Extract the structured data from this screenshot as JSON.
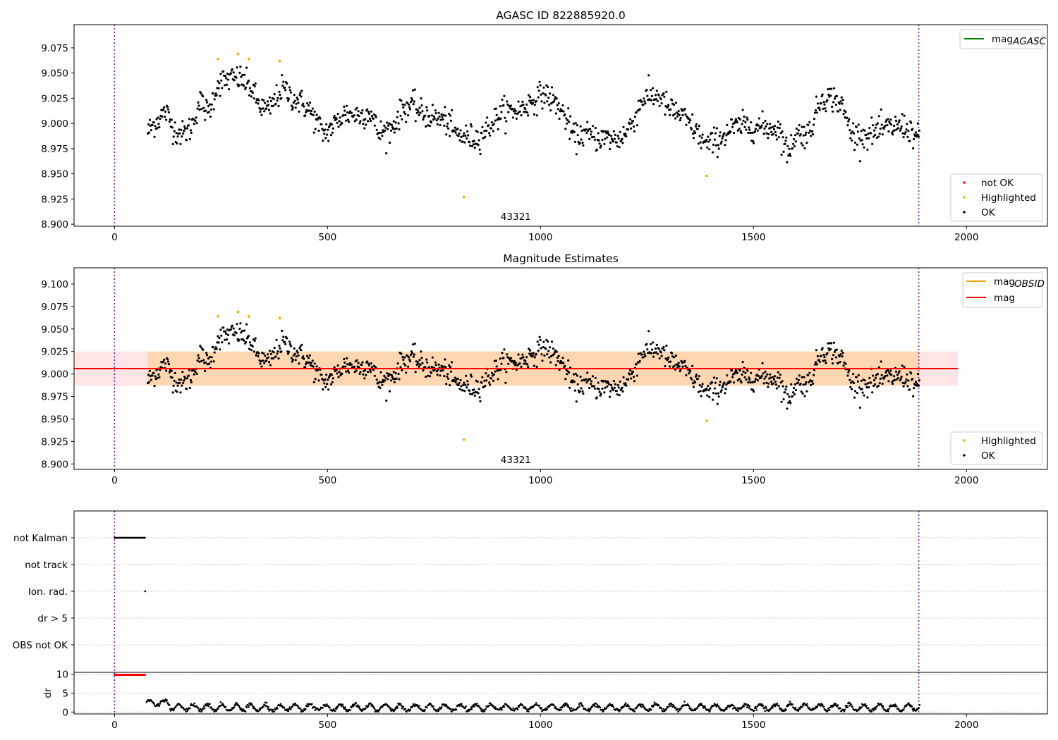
{
  "chart_data": [
    {
      "type": "scatter",
      "title": "AGASC ID 822885920.0",
      "xlim": [
        -95,
        2190
      ],
      "ylim": [
        8.898,
        9.098
      ],
      "xticks": [
        0,
        500,
        1000,
        1500,
        2000
      ],
      "yticks": [
        8.9,
        8.925,
        8.95,
        8.975,
        9.0,
        9.025,
        9.05,
        9.075
      ],
      "ytick_labels": [
        "8.900",
        "8.925",
        "8.950",
        "8.975",
        "9.000",
        "9.025",
        "9.050",
        "9.075"
      ],
      "obsid_label": "43321",
      "obsid_label_x": 942,
      "vlines_x": [
        0,
        1888
      ],
      "line_legend": [
        {
          "name": "mag",
          "subscript": "AGASC",
          "color": "#008000"
        }
      ],
      "point_legend": [
        {
          "name": "not OK",
          "color": "#ff0000"
        },
        {
          "name": "Highlighted",
          "color": "#ffa500"
        },
        {
          "name": "OK",
          "color": "#000000"
        }
      ],
      "highlighted_points": [
        [
          243,
          9.064
        ],
        [
          290,
          9.069
        ],
        [
          315,
          9.064
        ],
        [
          388,
          9.062
        ],
        [
          820,
          8.927
        ],
        [
          1390,
          8.948
        ]
      ],
      "ok_profile": [
        [
          78,
          8.992
        ],
        [
          100,
          9.003
        ],
        [
          120,
          9.012
        ],
        [
          140,
          8.994
        ],
        [
          160,
          8.989
        ],
        [
          180,
          8.996
        ],
        [
          200,
          9.022
        ],
        [
          220,
          9.01
        ],
        [
          243,
          9.04
        ],
        [
          270,
          9.044
        ],
        [
          295,
          9.045
        ],
        [
          320,
          9.035
        ],
        [
          340,
          9.018
        ],
        [
          360,
          9.012
        ],
        [
          395,
          9.035
        ],
        [
          420,
          9.025
        ],
        [
          440,
          9.02
        ],
        [
          460,
          9.012
        ],
        [
          490,
          8.99
        ],
        [
          510,
          8.996
        ],
        [
          540,
          9.01
        ],
        [
          580,
          9.008
        ],
        [
          600,
          9.012
        ],
        [
          620,
          8.99
        ],
        [
          650,
          8.995
        ],
        [
          680,
          9.016
        ],
        [
          700,
          9.018
        ],
        [
          720,
          9.01
        ],
        [
          760,
          9.005
        ],
        [
          780,
          9.002
        ],
        [
          800,
          8.99
        ],
        [
          820,
          8.987
        ],
        [
          850,
          8.985
        ],
        [
          880,
          8.997
        ],
        [
          910,
          9.012
        ],
        [
          950,
          9.013
        ],
        [
          980,
          9.022
        ],
        [
          1010,
          9.03
        ],
        [
          1040,
          9.018
        ],
        [
          1060,
          9.005
        ],
        [
          1080,
          8.985
        ],
        [
          1100,
          8.99
        ],
        [
          1130,
          8.986
        ],
        [
          1160,
          8.985
        ],
        [
          1180,
          8.984
        ],
        [
          1200,
          8.99
        ],
        [
          1220,
          9.005
        ],
        [
          1240,
          9.025
        ],
        [
          1260,
          9.027
        ],
        [
          1280,
          9.027
        ],
        [
          1300,
          9.015
        ],
        [
          1330,
          9.008
        ],
        [
          1360,
          8.995
        ],
        [
          1390,
          8.978
        ],
        [
          1420,
          8.985
        ],
        [
          1450,
          8.995
        ],
        [
          1480,
          8.998
        ],
        [
          1500,
          8.997
        ],
        [
          1530,
          8.996
        ],
        [
          1560,
          8.995
        ],
        [
          1580,
          8.97
        ],
        [
          1600,
          8.99
        ],
        [
          1630,
          8.99
        ],
        [
          1660,
          9.026
        ],
        [
          1690,
          9.025
        ],
        [
          1710,
          9.015
        ],
        [
          1730,
          8.99
        ],
        [
          1760,
          8.988
        ],
        [
          1790,
          8.992
        ],
        [
          1820,
          8.996
        ],
        [
          1850,
          8.998
        ],
        [
          1870,
          8.992
        ],
        [
          1890,
          8.983
        ]
      ]
    },
    {
      "type": "scatter",
      "title": "Magnitude Estimates",
      "xlim": [
        -95,
        2190
      ],
      "ylim": [
        8.894,
        9.118
      ],
      "xticks": [
        0,
        500,
        1000,
        1500,
        2000
      ],
      "yticks": [
        8.9,
        8.925,
        8.95,
        8.975,
        9.0,
        9.025,
        9.05,
        9.075,
        9.1
      ],
      "ytick_labels": [
        "8.900",
        "8.925",
        "8.950",
        "8.975",
        "9.000",
        "9.025",
        "9.050",
        "9.075",
        "9.100"
      ],
      "obsid_label": "43321",
      "obsid_label_x": 942,
      "vlines_x": [
        0,
        1888
      ],
      "mag": 9.006,
      "mag_band": [
        8.987,
        9.025
      ],
      "mag_band_x": [
        -95,
        1980
      ],
      "mag_obsid_band_x": [
        78,
        1890
      ],
      "line_legend": [
        {
          "name": "mag",
          "subscript": "OBSID",
          "color": "#ffa500"
        },
        {
          "name": "mag",
          "subscript": "",
          "color": "#ff0000"
        }
      ],
      "point_legend": [
        {
          "name": "Highlighted",
          "color": "#ffa500"
        },
        {
          "name": "OK",
          "color": "#000000"
        }
      ]
    },
    {
      "type": "scatter",
      "title": "",
      "xlim": [
        -95,
        2190
      ],
      "categories": [
        "not Kalman",
        "not track",
        "Ion. rad.",
        "dr > 5",
        "OBS not OK"
      ],
      "not_kalman_range": [
        0,
        72
      ],
      "ion_rad_x": [
        72
      ],
      "vlines_x": [
        0,
        1888
      ]
    },
    {
      "type": "scatter",
      "title": "",
      "ylabel": "dr",
      "xlim": [
        -95,
        2190
      ],
      "ylim": [
        -0.5,
        10.5
      ],
      "xticks": [
        0,
        500,
        1000,
        1500,
        2000
      ],
      "yticks": [
        0,
        5,
        10
      ],
      "ytick_labels": [
        "0",
        "5",
        "10"
      ],
      "dr_clip": 10,
      "clipped_range": [
        0,
        72
      ],
      "dr_range": [
        75,
        1890
      ],
      "vlines_x": [
        0,
        1888
      ]
    }
  ]
}
